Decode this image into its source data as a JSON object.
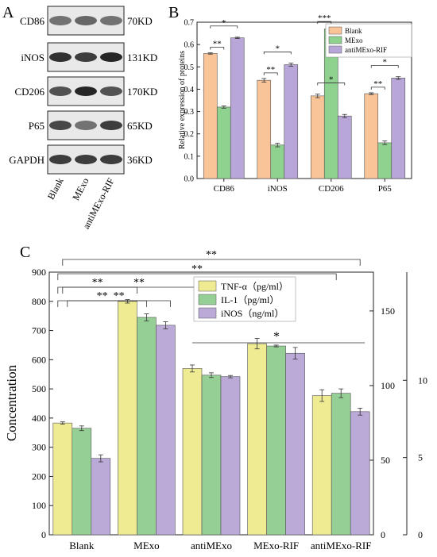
{
  "panel_labels": {
    "a": "A",
    "b": "B",
    "c": "C"
  },
  "colors": {
    "blank": "#f9c498",
    "mexo": "#8fd18f",
    "antimexo": "#b9a6d9",
    "tnf": "#eeeb93",
    "il1": "#95cf95",
    "inos": "#bba9d8",
    "bandbg": "#e9e9e9"
  },
  "chart_data": [
    {
      "type": "table",
      "panel": "A",
      "blot_rows": [
        {
          "protein": "CD86",
          "size": "70KD",
          "intensity": [
            0.55,
            0.6,
            0.55
          ]
        },
        {
          "protein": "iNOS",
          "size": "131KD",
          "intensity": [
            0.85,
            0.8,
            0.9
          ]
        },
        {
          "protein": "CD206",
          "size": "170KD",
          "intensity": [
            0.7,
            0.9,
            0.7
          ]
        },
        {
          "protein": "P65",
          "size": "65KD",
          "intensity": [
            0.75,
            0.55,
            0.8
          ]
        },
        {
          "protein": "GAPDH",
          "size": "36KD",
          "intensity": [
            0.8,
            0.8,
            0.8
          ]
        }
      ],
      "lanes": [
        "Blank",
        "MExo",
        "antiMExo-RIF"
      ]
    },
    {
      "type": "bar",
      "panel": "B",
      "categories": [
        "CD86",
        "iNOS",
        "CD206",
        "P65"
      ],
      "series": [
        {
          "name": "Blank",
          "values": [
            0.56,
            0.44,
            0.37,
            0.38
          ],
          "errors": [
            0.003,
            0.008,
            0.008,
            0.004
          ]
        },
        {
          "name": "MExo",
          "values": [
            0.32,
            0.15,
            0.67,
            0.16
          ],
          "errors": [
            0.005,
            0.008,
            0.008,
            0.008
          ]
        },
        {
          "name": "antiMExo-RIF",
          "values": [
            0.63,
            0.51,
            0.28,
            0.45
          ],
          "errors": [
            0.003,
            0.007,
            0.007,
            0.006
          ]
        }
      ],
      "ylabel": "Relative expression of proteins",
      "ylim": [
        0,
        0.7
      ],
      "yticks": [
        "0.0",
        "0.1",
        "0.2",
        "0.3",
        "0.4",
        "0.5",
        "0.6",
        "0.7"
      ],
      "legend": "top-right",
      "significance": [
        {
          "category": 0,
          "pair": [
            0,
            1
          ],
          "level": 1,
          "label": "**"
        },
        {
          "category": 0,
          "pair": [
            0,
            2
          ],
          "level": 2,
          "label": "*"
        },
        {
          "category": 1,
          "pair": [
            0,
            1
          ],
          "level": 1,
          "label": "**"
        },
        {
          "category": 1,
          "pair": [
            0,
            2
          ],
          "level": 2,
          "label": "*"
        },
        {
          "category": 2,
          "pair": [
            0,
            1
          ],
          "level": 1,
          "label": "***"
        },
        {
          "category": 2,
          "pair": [
            0,
            2
          ],
          "level": 2,
          "label": "*"
        },
        {
          "category": 3,
          "pair": [
            0,
            1
          ],
          "level": 1,
          "label": "**"
        },
        {
          "category": 3,
          "pair": [
            0,
            2
          ],
          "level": 2,
          "label": "*"
        }
      ]
    },
    {
      "type": "bar",
      "panel": "C",
      "categories": [
        "Blank",
        "MExo",
        "antiMExo",
        "MExo-RIF",
        "antiMExo-RIF"
      ],
      "series": [
        {
          "name": "TNF-α（pg/ml）",
          "values": [
            383,
            800,
            570,
            655,
            477
          ],
          "errors": [
            4,
            6,
            12,
            18,
            20
          ]
        },
        {
          "name": "IL-1（pg/ml）",
          "values": [
            365,
            745,
            547,
            647,
            485
          ],
          "errors": [
            8,
            12,
            8,
            3,
            15
          ]
        },
        {
          "name": "iNOS（ng/ml）",
          "values": [
            262,
            718,
            542,
            622,
            422
          ],
          "errors": [
            12,
            12,
            4,
            20,
            12
          ]
        }
      ],
      "ylabel": "Concentration",
      "ylim": [
        0,
        900
      ],
      "yticks": [
        "0",
        "100",
        "200",
        "300",
        "400",
        "500",
        "600",
        "700",
        "800",
        "900"
      ],
      "right_axis_1": {
        "ticks": [
          "0",
          "50",
          "100",
          "150"
        ],
        "ylim": [
          0,
          176
        ]
      },
      "right_axis_2": {
        "ticks": [
          "0",
          "5",
          "10"
        ],
        "ylim": [
          0,
          17
        ]
      },
      "legend": "top-center",
      "significance": [
        {
          "from": 0,
          "to": 4,
          "label": "**"
        },
        {
          "from": 0,
          "to": 4,
          "label": "**"
        },
        {
          "from": 0,
          "to": 3,
          "label": "**"
        },
        {
          "from": 0,
          "to": 1,
          "label": "**"
        },
        {
          "from": 0,
          "to": 1,
          "label": "**"
        },
        {
          "from": 0,
          "to": 1,
          "label": "**"
        },
        {
          "from": 2,
          "to": 4,
          "label": "*"
        }
      ]
    }
  ]
}
